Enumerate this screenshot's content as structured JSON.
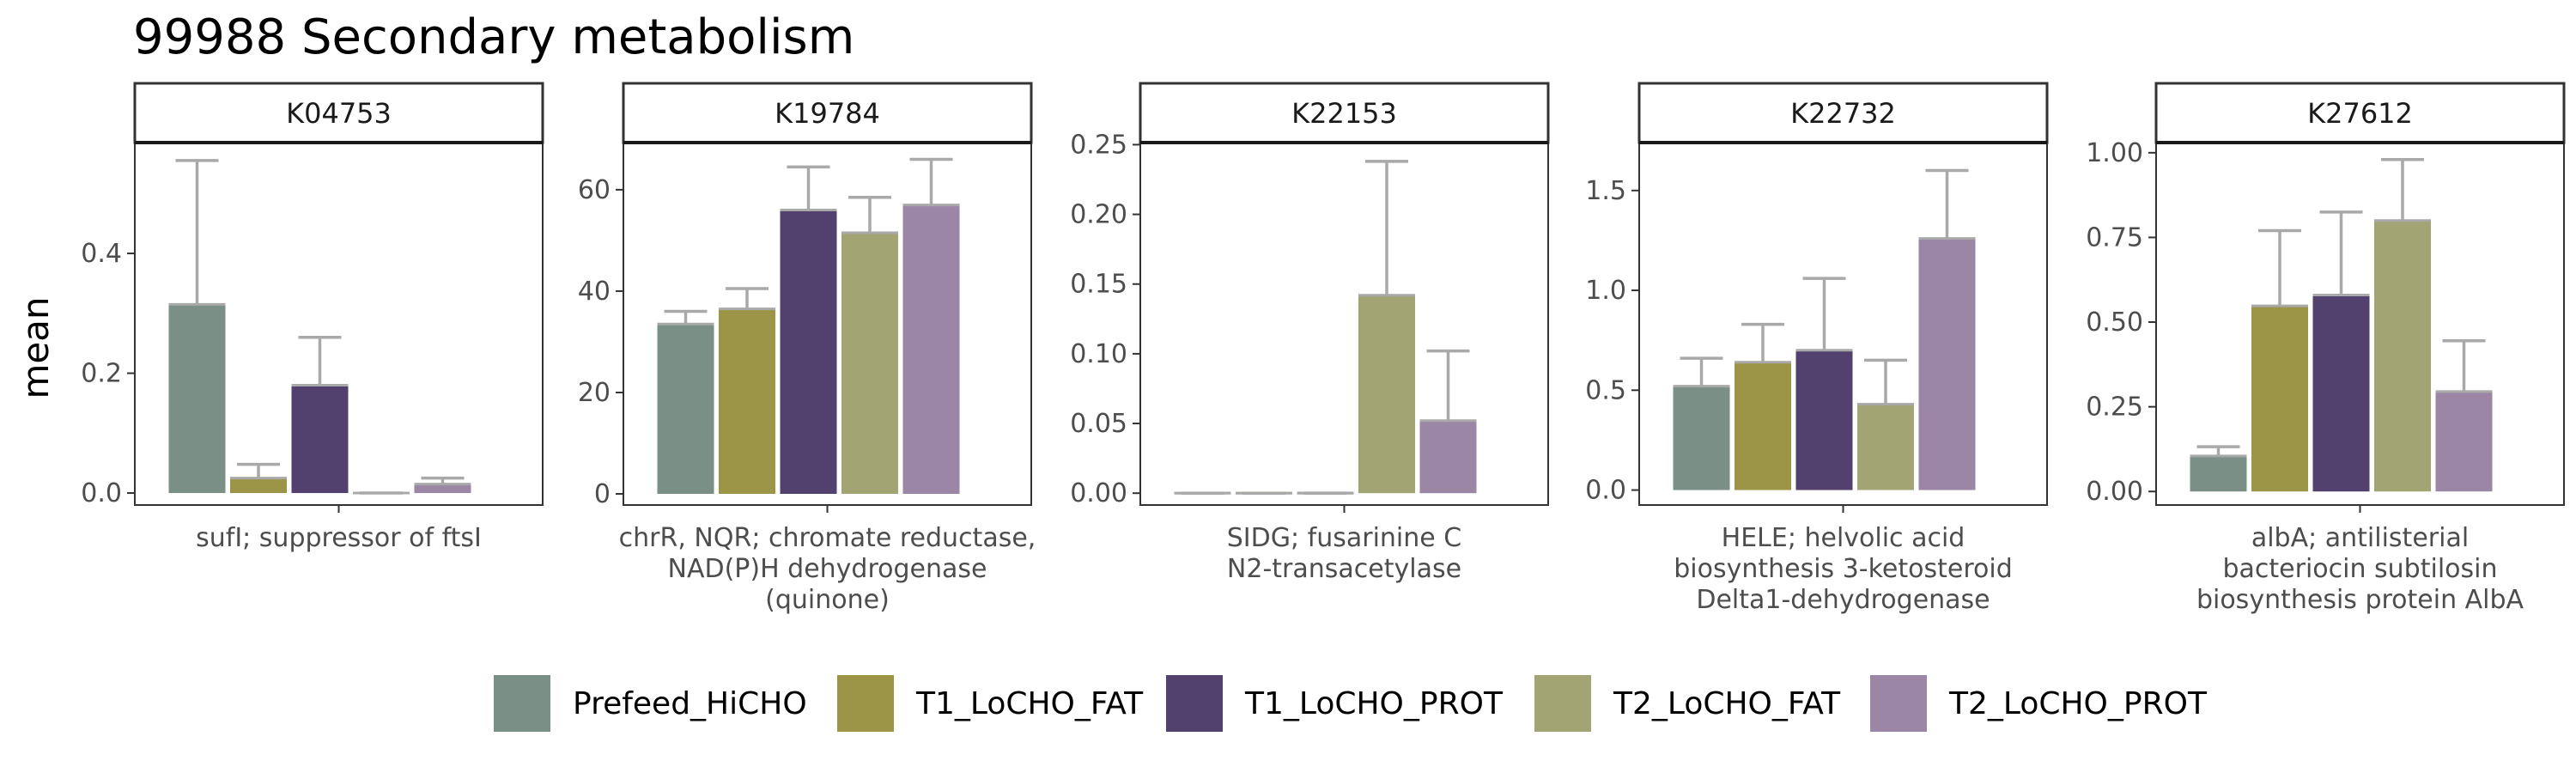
{
  "title": "99988 Secondary metabolism",
  "ylabel": "mean",
  "colors": {
    "Prefeed_HiCHO": "#7a8f86",
    "T1_LoCHO_FAT": "#9c9548",
    "T1_LoCHO_PROT": "#52416e",
    "T2_LoCHO_FAT": "#a2a474",
    "T2_LoCHO_PROT": "#9b86a6",
    "errorbar": "#a9a9a9"
  },
  "legend": [
    "Prefeed_HiCHO",
    "T1_LoCHO_FAT",
    "T1_LoCHO_PROT",
    "T2_LoCHO_FAT",
    "T2_LoCHO_PROT"
  ],
  "chart_data": [
    {
      "type": "bar",
      "panel": "K04753",
      "xlabel": [
        "sufI; suppressor of ftsI"
      ],
      "categories": [
        "Prefeed_HiCHO",
        "T1_LoCHO_FAT",
        "T1_LoCHO_PROT",
        "T2_LoCHO_FAT",
        "T2_LoCHO_PROT"
      ],
      "values": [
        0.315,
        0.025,
        0.18,
        0.0,
        0.015
      ],
      "error_upper": [
        0.555,
        0.048,
        0.26,
        0.0,
        0.025
      ],
      "ylim": [
        -0.02,
        0.585
      ],
      "yticks": [
        0.0,
        0.2,
        0.4
      ],
      "ytick_labels": [
        "0.0",
        "0.2",
        "0.4"
      ]
    },
    {
      "type": "bar",
      "panel": "K19784",
      "xlabel": [
        "chrR, NQR; chromate reductase,",
        "NAD(P)H dehydrogenase",
        "(quinone)"
      ],
      "categories": [
        "Prefeed_HiCHO",
        "T1_LoCHO_FAT",
        "T1_LoCHO_PROT",
        "T2_LoCHO_FAT",
        "T2_LoCHO_PROT"
      ],
      "values": [
        33.5,
        36.5,
        56.0,
        51.5,
        57.0
      ],
      "error_upper": [
        36.0,
        40.5,
        64.5,
        58.5,
        66.0
      ],
      "ylim": [
        -2.2,
        69.3
      ],
      "yticks": [
        0,
        20,
        40,
        60
      ],
      "ytick_labels": [
        "0",
        "20",
        "40",
        "60"
      ]
    },
    {
      "type": "bar",
      "panel": "K22153",
      "xlabel": [
        "SIDG; fusarinine C",
        "N2-transacetylase"
      ],
      "categories": [
        "Prefeed_HiCHO",
        "T1_LoCHO_FAT",
        "T1_LoCHO_PROT",
        "T2_LoCHO_FAT",
        "T2_LoCHO_PROT"
      ],
      "values": [
        0.0,
        0.0,
        0.0,
        0.142,
        0.052
      ],
      "error_upper": [
        0.0,
        0.0,
        0.0,
        0.238,
        0.102
      ],
      "ylim": [
        -0.0085,
        0.2515
      ],
      "yticks": [
        0.0,
        0.05,
        0.1,
        0.15,
        0.2,
        0.25
      ],
      "ytick_labels": [
        "0.00",
        "0.05",
        "0.10",
        "0.15",
        "0.20",
        "0.25"
      ]
    },
    {
      "type": "bar",
      "panel": "K22732",
      "xlabel": [
        "HELE; helvolic acid",
        "biosynthesis 3-ketosteroid",
        "Delta1-dehydrogenase"
      ],
      "categories": [
        "Prefeed_HiCHO",
        "T1_LoCHO_FAT",
        "T1_LoCHO_PROT",
        "T2_LoCHO_FAT",
        "T2_LoCHO_PROT"
      ],
      "values": [
        0.52,
        0.64,
        0.7,
        0.43,
        1.26
      ],
      "error_upper": [
        0.66,
        0.83,
        1.06,
        0.65,
        1.6
      ],
      "ylim": [
        -0.075,
        1.74
      ],
      "yticks": [
        0.0,
        0.5,
        1.0,
        1.5
      ],
      "ytick_labels": [
        "0.0",
        "0.5",
        "1.0",
        "1.5"
      ]
    },
    {
      "type": "bar",
      "panel": "K27612",
      "xlabel": [
        "albA; antilisterial",
        "bacteriocin subtilosin",
        "biosynthesis protein AlbA"
      ],
      "categories": [
        "Prefeed_HiCHO",
        "T1_LoCHO_FAT",
        "T1_LoCHO_PROT",
        "T2_LoCHO_FAT",
        "T2_LoCHO_PROT"
      ],
      "values": [
        0.105,
        0.548,
        0.58,
        0.8,
        0.295
      ],
      "error_upper": [
        0.132,
        0.77,
        0.825,
        0.98,
        0.445
      ],
      "ylim": [
        -0.04,
        1.03
      ],
      "yticks": [
        0.0,
        0.25,
        0.5,
        0.75,
        1.0
      ],
      "ytick_labels": [
        "0.00",
        "0.25",
        "0.50",
        "0.75",
        "1.00"
      ]
    }
  ]
}
